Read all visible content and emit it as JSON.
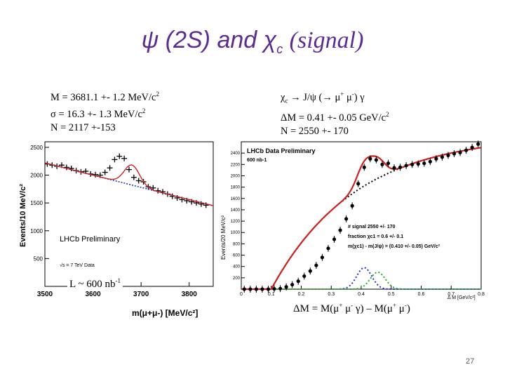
{
  "slide": {
    "title_psi": "ψ (2S) and",
    "title_chi": "χ",
    "title_sub": "c",
    "title_signal": "(signal)",
    "page_number": "27"
  },
  "left_info": {
    "line1": "M = 3681.1 +- 1.2 MeV/c",
    "line2": "σ = 16.3 +- 1.3 MeV/c",
    "line3": "N = 2117 +-153",
    "sup": "2"
  },
  "right_info": {
    "line1a": "χ",
    "line1b": " → J/ψ (→ μ",
    "line1c": " μ",
    "line1d": ") γ",
    "line2": "ΔM = 0.41 +- 0.05 GeV/c",
    "line3": "N = 2550 +- 170",
    "sub_c": "c",
    "plus": "+",
    "minus": "-",
    "sup2": "2"
  },
  "lumi": {
    "text": "L ~ 600 nb",
    "sup": "-1"
  },
  "dm_formula": {
    "a": "ΔM = M(μ",
    "b": " μ",
    "c": " γ) – M(μ",
    "d": " μ",
    "e": ")",
    "plus": "+",
    "minus": "-"
  },
  "chart_data": [
    {
      "type": "scatter",
      "title": "LHCb Preliminary",
      "annotation": "√s = 7 TeV Data",
      "xlabel": "m(μ+μ-) [MeV/c²]",
      "ylabel": "Events/10 MeV/c²",
      "xlim": [
        3500,
        3850
      ],
      "ylim": [
        0,
        2600
      ],
      "xticks": [
        "3500",
        "3600",
        "3700",
        "3800"
      ],
      "yticks": [
        "500",
        "1000",
        "1500",
        "2000",
        "2500"
      ],
      "x": [
        3505,
        3515,
        3525,
        3535,
        3545,
        3555,
        3565,
        3575,
        3585,
        3595,
        3605,
        3615,
        3625,
        3635,
        3645,
        3655,
        3665,
        3675,
        3685,
        3695,
        3705,
        3715,
        3725,
        3735,
        3745,
        3755,
        3765,
        3775,
        3785,
        3795,
        3805,
        3815,
        3825,
        3835
      ],
      "y": [
        2200,
        2180,
        2160,
        2180,
        2140,
        2120,
        2080,
        2060,
        2070,
        2020,
        2010,
        2000,
        2050,
        2130,
        2280,
        2340,
        2300,
        2100,
        1960,
        1900,
        1880,
        1790,
        1770,
        1720,
        1700,
        1660,
        1620,
        1590,
        1560,
        1540,
        1520,
        1500,
        1480,
        1460
      ]
    },
    {
      "type": "scatter",
      "title": "LHCb Data Preliminary",
      "subtitle": "600 nb-1",
      "xlabel": "Δ M [GeV/c²]",
      "ylabel": "Events/20 MeV/c²",
      "xlim": [
        0,
        0.8
      ],
      "ylim": [
        0,
        2600
      ],
      "xticks": [
        "0",
        "0.1",
        "0.2",
        "0.3",
        "0.4",
        "0.5",
        "0.6",
        "0.7",
        "0.8"
      ],
      "yticks": [
        "200",
        "400",
        "600",
        "800",
        "1000",
        "1200",
        "1400",
        "1600",
        "1800",
        "2000",
        "2200",
        "2400"
      ],
      "legend": [
        "# signal 2550 +/- 170",
        "fraction χc1 = 0.6 +/- 0.1",
        "m(χc1) - m(J/ψ) = (0.410 +/- 0.05) GeV/c²"
      ],
      "x": [
        0.01,
        0.03,
        0.05,
        0.07,
        0.09,
        0.11,
        0.13,
        0.15,
        0.17,
        0.19,
        0.21,
        0.23,
        0.25,
        0.27,
        0.29,
        0.31,
        0.33,
        0.35,
        0.37,
        0.39,
        0.41,
        0.43,
        0.45,
        0.47,
        0.49,
        0.51,
        0.53,
        0.55,
        0.57,
        0.59,
        0.61,
        0.63,
        0.65,
        0.67,
        0.69,
        0.71,
        0.73,
        0.75,
        0.77,
        0.79
      ],
      "y": [
        0,
        0,
        0,
        0,
        0,
        5,
        10,
        40,
        80,
        140,
        230,
        320,
        420,
        560,
        720,
        880,
        1040,
        1240,
        1470,
        1860,
        2150,
        2300,
        2280,
        2200,
        2220,
        2140,
        2150,
        2180,
        2200,
        2210,
        2220,
        2250,
        2300,
        2330,
        2360,
        2390,
        2410,
        2450,
        2500,
        2560
      ]
    }
  ]
}
